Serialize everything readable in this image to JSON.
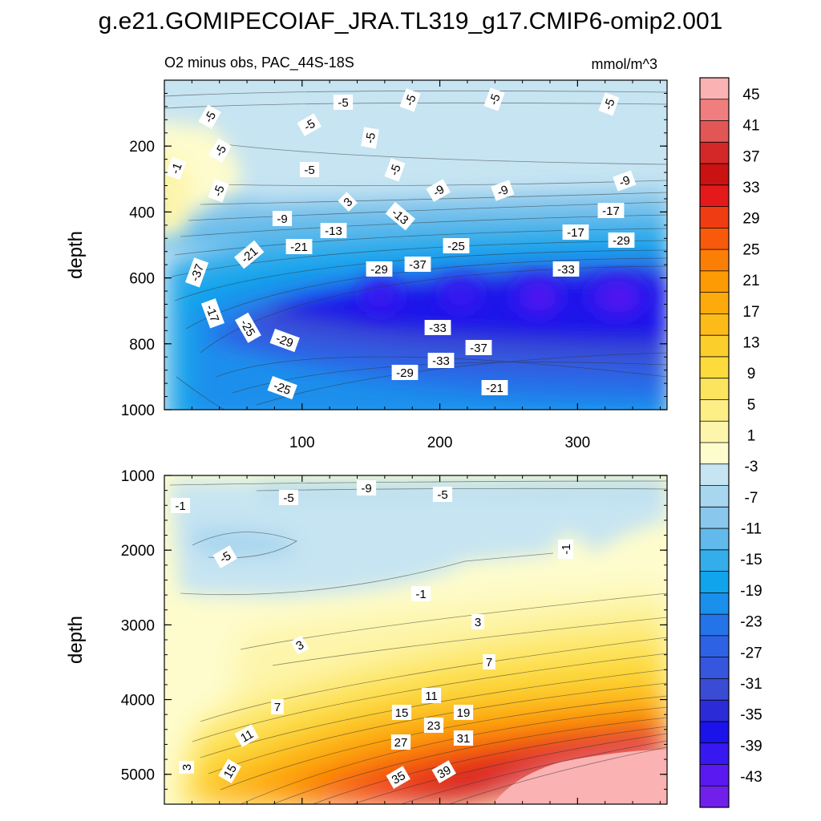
{
  "chart_data": {
    "type": "heatmap",
    "title": "g.e21.GOMIPECOIAF_JRA.TL319_g17.CMIP6-omip2.001",
    "subtitle_left": "O2 minus obs, PAC_44S-18S",
    "subtitle_right": "mmol/m^3",
    "ylabel": "depth",
    "xlim": [
      0,
      365
    ],
    "x_ticks": [
      "100",
      "200",
      "300"
    ],
    "top_panel": {
      "ylim": [
        0,
        1000
      ],
      "y_ticks": [
        "200",
        "400",
        "600",
        "800",
        "1000"
      ],
      "contour_labels": [
        "-5",
        "-5",
        "-5",
        "-5",
        "-5",
        "-5",
        "-5",
        "-5",
        "-5",
        "-5",
        "-5",
        "-1",
        "3",
        "-9",
        "-9",
        "-9",
        "-9",
        "-13",
        "-13",
        "-17",
        "-17",
        "-21",
        "-21",
        "-25",
        "-29",
        "-29",
        "-37",
        "-33",
        "-37",
        "-17",
        "-25",
        "-29",
        "-33",
        "-37",
        "-33",
        "-29",
        "-25",
        "-21",
        "-21"
      ],
      "core_minimum": -43
    },
    "bottom_panel": {
      "ylim": [
        1000,
        5400
      ],
      "y_ticks": [
        "1000",
        "2000",
        "3000",
        "4000",
        "5000"
      ],
      "contour_labels": [
        "-1",
        "-5",
        "-9",
        "-5",
        "-5",
        "-1",
        "-1",
        "3",
        "3",
        "7",
        "7",
        "11",
        "11",
        "15",
        "19",
        "23",
        "27",
        "31",
        "35",
        "39",
        "15",
        "3"
      ],
      "bottom_maximum": 45
    },
    "colorbar": {
      "labels": [
        "45",
        "41",
        "37",
        "33",
        "29",
        "25",
        "21",
        "17",
        "13",
        "9",
        "5",
        "1",
        "-3",
        "-7",
        "-11",
        "-15",
        "-19",
        "-23",
        "-27",
        "-31",
        "-35",
        "-39",
        "-43"
      ],
      "colors": [
        "#fbb2b2",
        "#f17e7e",
        "#e25656",
        "#d42828",
        "#cb1212",
        "#e41a1a",
        "#f03c12",
        "#f75a0a",
        "#fb7f05",
        "#fd9b04",
        "#fdaa0c",
        "#fdbb1a",
        "#fcce2c",
        "#fddb3d",
        "#fde45e",
        "#fdee85",
        "#fdf5ab",
        "#fefccd",
        "#c6e4f2",
        "#a8d6ef",
        "#89c8ec",
        "#61baeb",
        "#34adeb",
        "#10a4ec",
        "#1b8fec",
        "#2473e9",
        "#2e62e4",
        "#3556dd",
        "#3a4bd4",
        "#2c2bd8",
        "#1a13ea",
        "#3818f0",
        "#5a19f0",
        "#7020ea"
      ]
    }
  }
}
